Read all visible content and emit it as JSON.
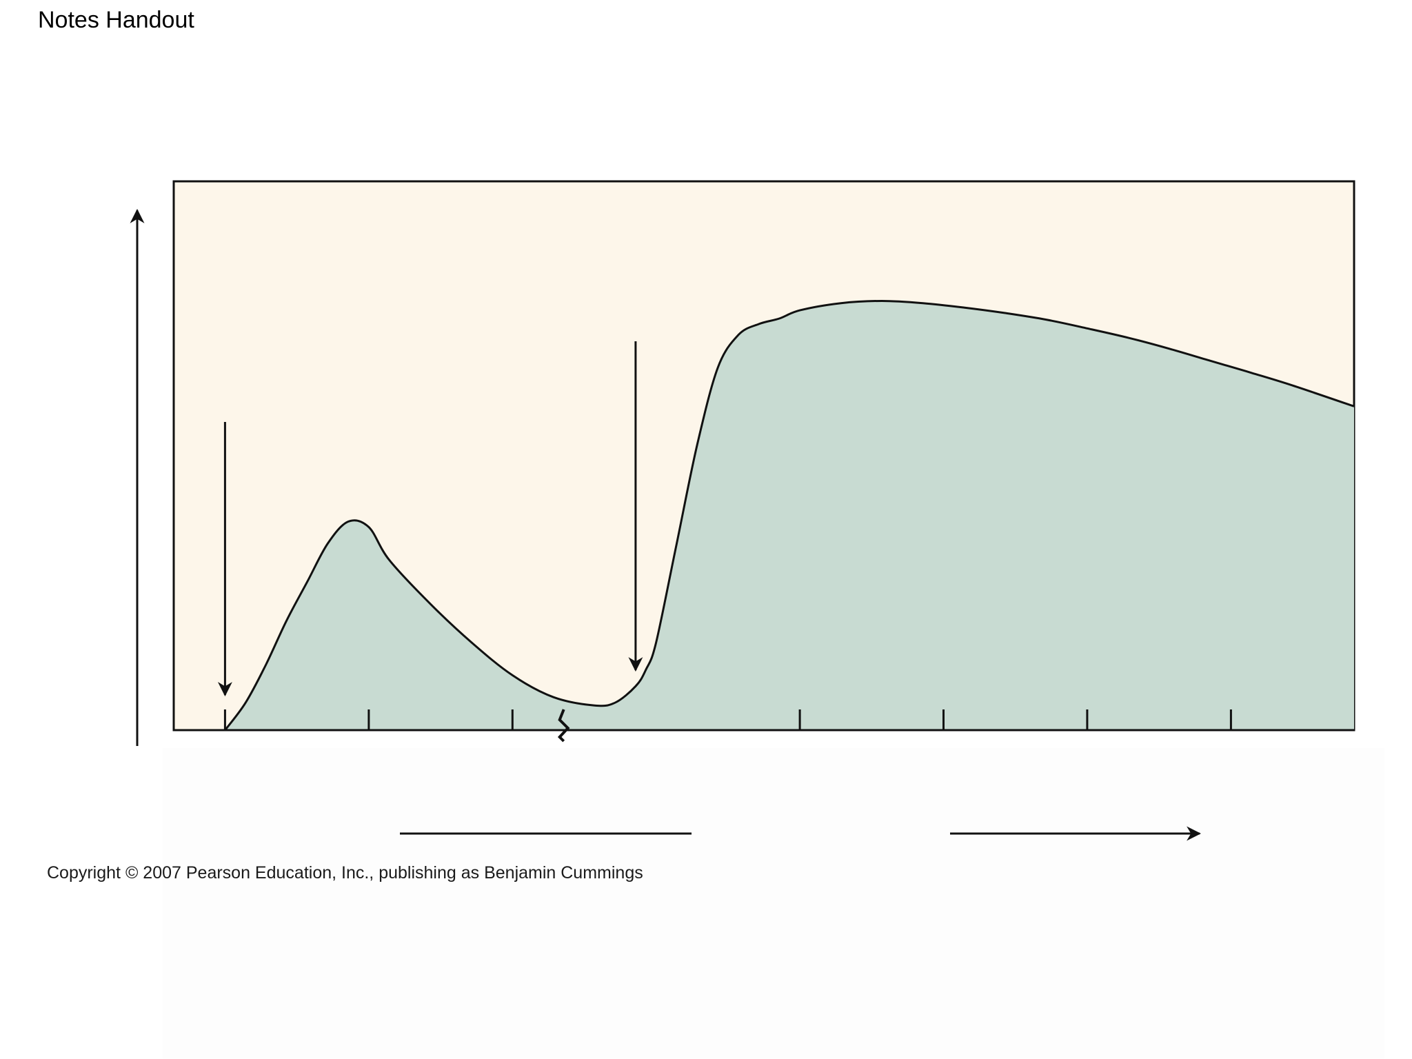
{
  "page": {
    "title": "Notes Handout",
    "copyright": "Copyright © 2007 Pearson Education, Inc., publishing as Benjamin Cummings"
  },
  "colors": {
    "plot_background": "#fdf6ea",
    "area_fill": "#c8dbd2",
    "stroke": "#111111"
  },
  "chart_data": {
    "type": "area",
    "title": "",
    "xlabel": "",
    "ylabel": "",
    "x_ticks": [
      0,
      7,
      14,
      28,
      35,
      42,
      49
    ],
    "x_axis_break_after": 14,
    "xlim": [
      -2.5,
      55
    ],
    "ylim": [
      0,
      1
    ],
    "grid": false,
    "legend": "none",
    "series": [
      {
        "x": [
          0,
          1,
          2,
          3,
          4,
          5,
          6,
          7,
          8,
          10,
          12,
          14,
          16,
          18,
          19,
          20,
          20.5,
          21,
          22,
          23,
          24,
          25,
          26,
          27,
          28,
          30,
          32,
          34,
          36,
          38,
          40,
          42,
          44,
          46,
          48,
          50,
          52,
          55
        ],
        "y": [
          0,
          0.05,
          0.12,
          0.2,
          0.27,
          0.34,
          0.38,
          0.37,
          0.31,
          0.23,
          0.16,
          0.1,
          0.06,
          0.045,
          0.05,
          0.08,
          0.11,
          0.16,
          0.34,
          0.52,
          0.66,
          0.72,
          0.74,
          0.75,
          0.765,
          0.778,
          0.782,
          0.778,
          0.77,
          0.76,
          0.748,
          0.732,
          0.715,
          0.695,
          0.673,
          0.651,
          0.628,
          0.59
        ]
      }
    ],
    "annotations": [
      {
        "kind": "down-arrow",
        "x": 0
      },
      {
        "kind": "down-arrow",
        "x": 20
      }
    ]
  }
}
